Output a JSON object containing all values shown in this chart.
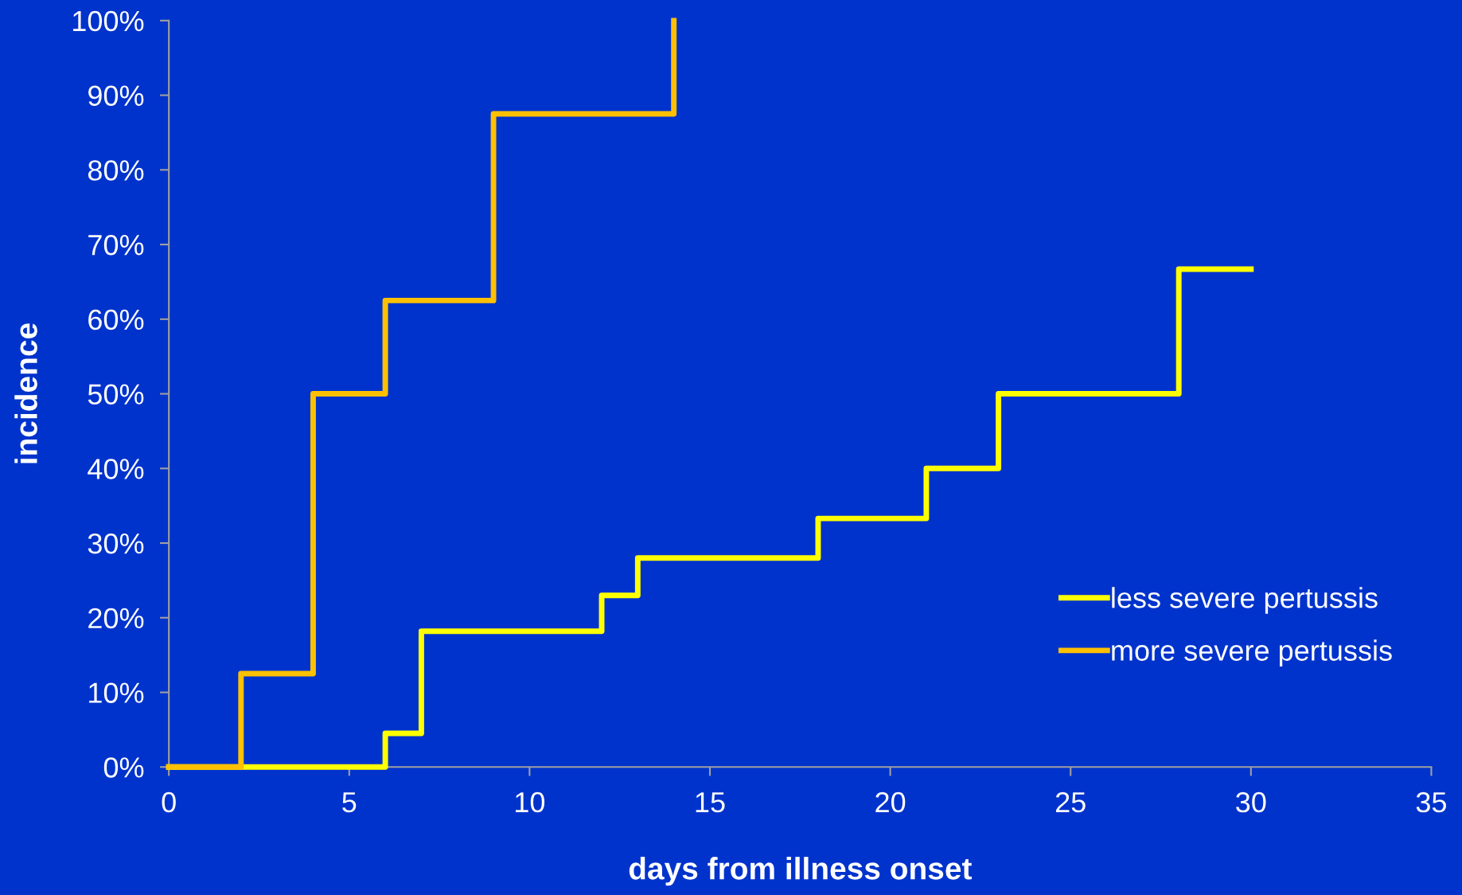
{
  "chart_data": {
    "type": "step",
    "xlabel": "days from illness onset",
    "ylabel": "incidence",
    "series": [
      {
        "name": "less severe pertussis",
        "color": "#ffff00",
        "x": [
          0,
          6,
          7,
          12,
          13,
          18,
          21,
          23,
          28,
          30
        ],
        "values": [
          0,
          4.5,
          18.2,
          23,
          28,
          33.3,
          40,
          50,
          66.7,
          66.7
        ]
      },
      {
        "name": "more severe pertussis",
        "color": "#ffc000",
        "x": [
          0,
          2,
          4,
          6,
          9,
          14
        ],
        "values": [
          0,
          12.5,
          50,
          62.5,
          87.5,
          100
        ]
      }
    ],
    "xlim": [
      0,
      35
    ],
    "xticks": [
      0,
      5,
      10,
      15,
      20,
      25,
      30,
      35
    ],
    "ylim": [
      0,
      100
    ],
    "yticks": [
      {
        "value": 0,
        "label": "0%"
      },
      {
        "value": 10,
        "label": "10%"
      },
      {
        "value": 20,
        "label": "20%"
      },
      {
        "value": 30,
        "label": "30%"
      },
      {
        "value": 40,
        "label": "40%"
      },
      {
        "value": 50,
        "label": "50%"
      },
      {
        "value": 60,
        "label": "60%"
      },
      {
        "value": 70,
        "label": "70%"
      },
      {
        "value": 80,
        "label": "80%"
      },
      {
        "value": 90,
        "label": "90%"
      },
      {
        "value": 100,
        "label": "100%"
      }
    ],
    "grid": false,
    "legend": "bottom right",
    "line_style": "solid",
    "marker": "none"
  }
}
